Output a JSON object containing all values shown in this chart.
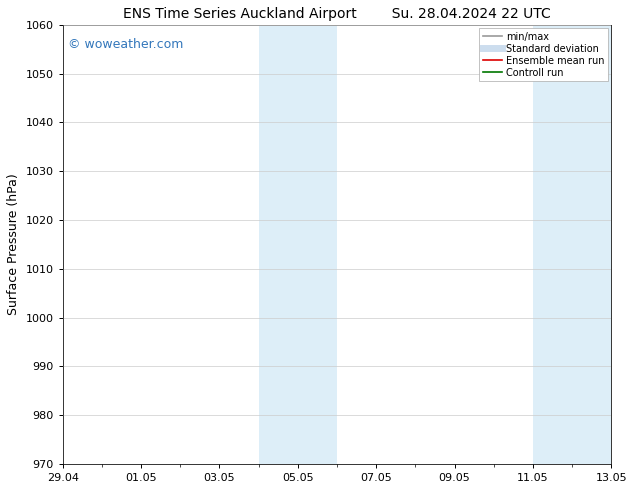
{
  "title_left": "ENS Time Series Auckland Airport",
  "title_right": "Su. 28.04.2024 22 UTC",
  "ylabel": "Surface Pressure (hPa)",
  "ylim": [
    970,
    1060
  ],
  "yticks": [
    970,
    980,
    990,
    1000,
    1010,
    1020,
    1030,
    1040,
    1050,
    1060
  ],
  "xtick_labels": [
    "29.04",
    "01.05",
    "03.05",
    "05.05",
    "07.05",
    "09.05",
    "11.05",
    "13.05"
  ],
  "xtick_positions": [
    0,
    2,
    4,
    6,
    8,
    10,
    12,
    14
  ],
  "watermark": "© woweather.com",
  "watermark_color": "#3377bb",
  "shaded_regions": [
    {
      "x_start": 5.0,
      "x_end": 6.0,
      "color": "#ddeef8"
    },
    {
      "x_start": 6.0,
      "x_end": 7.0,
      "color": "#ddeef8"
    },
    {
      "x_start": 12.0,
      "x_end": 13.0,
      "color": "#ddeef8"
    },
    {
      "x_start": 13.0,
      "x_end": 14.0,
      "color": "#ddeef8"
    }
  ],
  "legend_entries": [
    {
      "label": "min/max",
      "color": "#999999",
      "lw": 1.2,
      "style": "solid"
    },
    {
      "label": "Standard deviation",
      "color": "#ccddee",
      "lw": 5,
      "style": "solid"
    },
    {
      "label": "Ensemble mean run",
      "color": "#dd0000",
      "lw": 1.2,
      "style": "solid"
    },
    {
      "label": "Controll run",
      "color": "#007700",
      "lw": 1.2,
      "style": "solid"
    }
  ],
  "bg_color": "#ffffff",
  "grid_color": "#cccccc",
  "tick_label_fontsize": 8,
  "axis_label_fontsize": 9,
  "title_fontsize": 10,
  "legend_fontsize": 7
}
